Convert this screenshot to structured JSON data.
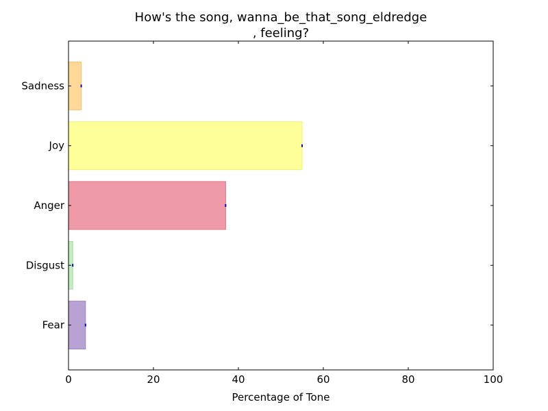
{
  "chart_data": {
    "type": "bar",
    "orientation": "horizontal",
    "title_lines": [
      "How's the song, wanna_be_that_song_eldredge",
      ", feeling?"
    ],
    "xlabel": "Percentage of Tone",
    "ylabel": "",
    "xlim": [
      0,
      100
    ],
    "xticks": [
      0,
      20,
      40,
      60,
      80,
      100
    ],
    "categories": [
      "Fear",
      "Disgust",
      "Anger",
      "Joy",
      "Sadness"
    ],
    "values": [
      4,
      1,
      37,
      55,
      3
    ],
    "colors": [
      "#b8a2d4",
      "#c3ecc0",
      "#ee9aa8",
      "#ffff99",
      "#ffd898"
    ],
    "edge_colors": [
      "#9f7fc6",
      "#a9dca5",
      "#e36d84",
      "#f0f070",
      "#f5c070"
    ],
    "error_marker_color": "#0000cc",
    "grid": false,
    "legend": "none"
  }
}
